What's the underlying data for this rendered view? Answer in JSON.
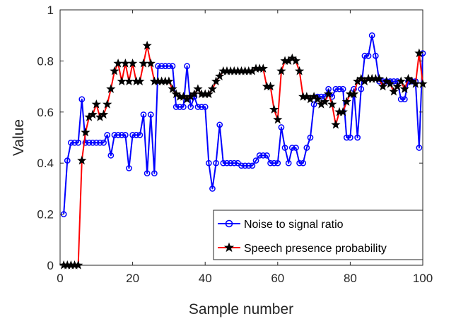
{
  "chart_data": {
    "type": "line",
    "title": "",
    "xlabel": "Sample number",
    "ylabel": "Value",
    "xlim": [
      0,
      100
    ],
    "ylim": [
      0,
      1
    ],
    "xticks": [
      0,
      20,
      40,
      60,
      80,
      100
    ],
    "yticks": [
      0,
      0.2,
      0.4,
      0.6,
      0.8,
      1
    ],
    "xtick_labels": [
      "0",
      "20",
      "40",
      "60",
      "80",
      "100"
    ],
    "ytick_labels": [
      "0",
      "0.2",
      "0.4",
      "0.6",
      "0.8",
      "1"
    ],
    "grid": false,
    "legend_position": "bottom-right",
    "x": [
      1,
      2,
      3,
      4,
      5,
      6,
      7,
      8,
      9,
      10,
      11,
      12,
      13,
      14,
      15,
      16,
      17,
      18,
      19,
      20,
      21,
      22,
      23,
      24,
      25,
      26,
      27,
      28,
      29,
      30,
      31,
      32,
      33,
      34,
      35,
      36,
      37,
      38,
      39,
      40,
      41,
      42,
      43,
      44,
      45,
      46,
      47,
      48,
      49,
      50,
      51,
      52,
      53,
      54,
      55,
      56,
      57,
      58,
      59,
      60,
      61,
      62,
      63,
      64,
      65,
      66,
      67,
      68,
      69,
      70,
      71,
      72,
      73,
      74,
      75,
      76,
      77,
      78,
      79,
      80,
      81,
      82,
      83,
      84,
      85,
      86,
      87,
      88,
      89,
      90,
      91,
      92,
      93,
      94,
      95,
      96,
      97,
      98,
      99,
      100
    ],
    "series": [
      {
        "name": "Noise to signal ratio",
        "color": "#0000ff",
        "marker": "circle",
        "values": [
          0.2,
          0.41,
          0.48,
          0.48,
          0.48,
          0.65,
          0.48,
          0.48,
          0.48,
          0.48,
          0.48,
          0.48,
          0.51,
          0.43,
          0.51,
          0.51,
          0.51,
          0.51,
          0.38,
          0.51,
          0.51,
          0.51,
          0.59,
          0.36,
          0.59,
          0.36,
          0.78,
          0.78,
          0.78,
          0.78,
          0.78,
          0.62,
          0.62,
          0.62,
          0.78,
          0.62,
          0.66,
          0.62,
          0.62,
          0.62,
          0.4,
          0.3,
          0.4,
          0.55,
          0.4,
          0.4,
          0.4,
          0.4,
          0.4,
          0.39,
          0.39,
          0.39,
          0.39,
          0.41,
          0.43,
          0.43,
          0.43,
          0.4,
          0.4,
          0.4,
          0.54,
          0.46,
          0.4,
          0.46,
          0.46,
          0.4,
          0.4,
          0.46,
          0.5,
          0.63,
          0.66,
          0.66,
          0.66,
          0.69,
          0.66,
          0.69,
          0.69,
          0.69,
          0.5,
          0.5,
          0.69,
          0.5,
          0.69,
          0.82,
          0.82,
          0.9,
          0.82,
          0.72,
          0.72,
          0.72,
          0.72,
          0.72,
          0.72,
          0.65,
          0.65,
          0.72,
          0.72,
          0.72,
          0.46,
          0.83
        ]
      },
      {
        "name": "Speech presence probability",
        "color": "#ff0000",
        "marker": "star",
        "values": [
          0.0,
          0.0,
          0.0,
          0.0,
          0.0,
          0.41,
          0.52,
          0.58,
          0.59,
          0.63,
          0.58,
          0.59,
          0.63,
          0.69,
          0.76,
          0.79,
          0.72,
          0.79,
          0.72,
          0.79,
          0.72,
          0.72,
          0.79,
          0.86,
          0.79,
          0.72,
          0.72,
          0.72,
          0.72,
          0.72,
          0.69,
          0.67,
          0.66,
          0.66,
          0.65,
          0.66,
          0.67,
          0.69,
          0.67,
          0.67,
          0.67,
          0.69,
          0.72,
          0.74,
          0.76,
          0.76,
          0.76,
          0.76,
          0.76,
          0.76,
          0.76,
          0.76,
          0.76,
          0.77,
          0.77,
          0.77,
          0.7,
          0.7,
          0.61,
          0.57,
          0.76,
          0.8,
          0.8,
          0.81,
          0.8,
          0.76,
          0.66,
          0.66,
          0.65,
          0.66,
          0.65,
          0.63,
          0.64,
          0.67,
          0.63,
          0.55,
          0.6,
          0.6,
          0.64,
          0.67,
          0.67,
          0.72,
          0.73,
          0.72,
          0.73,
          0.73,
          0.73,
          0.73,
          0.7,
          0.72,
          0.71,
          0.68,
          0.7,
          0.72,
          0.69,
          0.73,
          0.72,
          0.71,
          0.83,
          0.71
        ]
      }
    ]
  }
}
